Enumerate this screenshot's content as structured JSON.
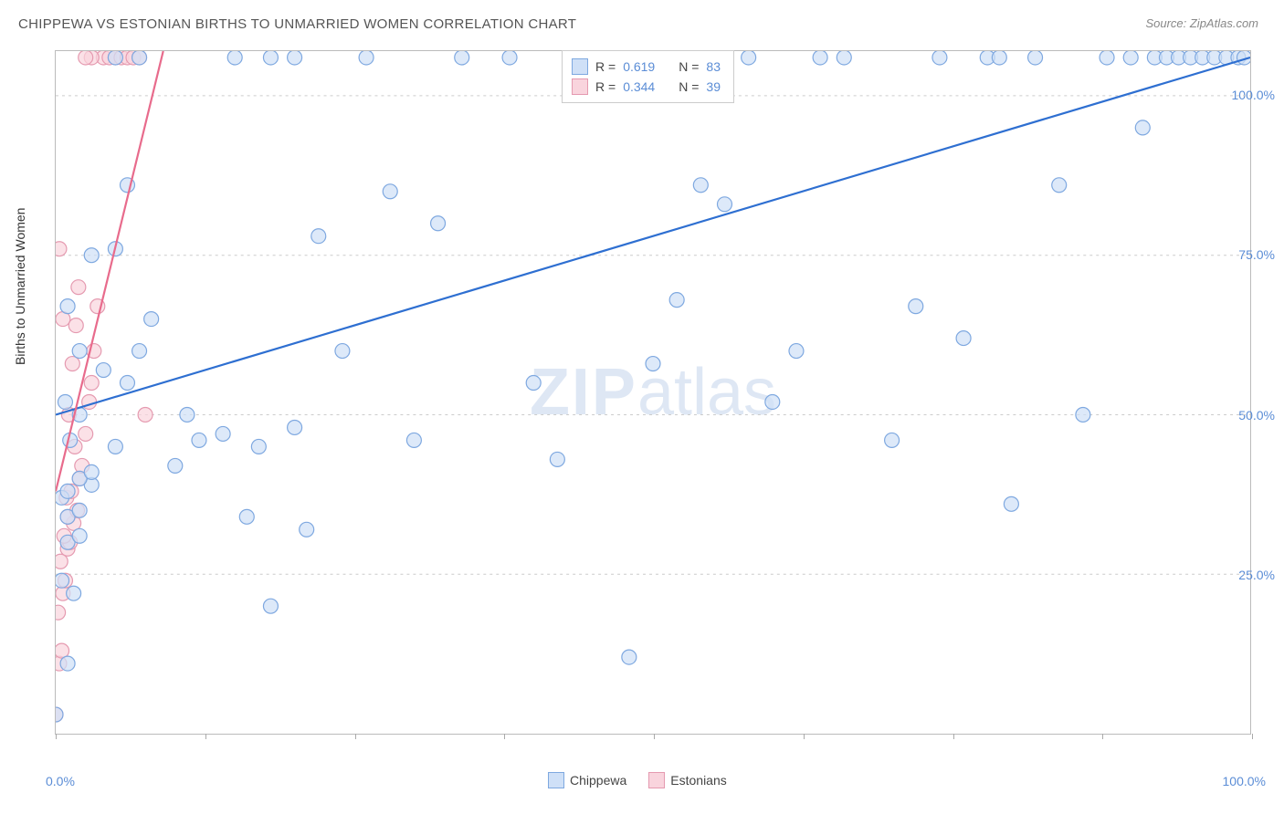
{
  "title": "CHIPPEWA VS ESTONIAN BIRTHS TO UNMARRIED WOMEN CORRELATION CHART",
  "source_label": "Source: ZipAtlas.com",
  "watermark": {
    "bold": "ZIP",
    "light": "atlas"
  },
  "ylabel": "Births to Unmarried Women",
  "chart": {
    "type": "scatter",
    "background_color": "#ffffff",
    "grid_color": "#cccccc",
    "border_color": "#bbbbbb",
    "xlim": [
      0,
      100
    ],
    "ylim": [
      0,
      107
    ],
    "y_ticks": [
      {
        "value": 25,
        "label": "25.0%"
      },
      {
        "value": 50,
        "label": "50.0%"
      },
      {
        "value": 75,
        "label": "75.0%"
      },
      {
        "value": 100,
        "label": "100.0%"
      }
    ],
    "x_ticks": [
      0,
      12.5,
      25,
      37.5,
      50,
      62.5,
      75,
      87.5,
      100
    ],
    "x_min_label": "0.0%",
    "x_max_label": "100.0%",
    "marker_radius": 8,
    "marker_stroke_width": 1.2,
    "line_width": 2.2,
    "series": [
      {
        "name": "Chippewa",
        "fill": "#cfe0f7",
        "stroke": "#7ea8e0",
        "line_color": "#2e6fd1",
        "R": "0.619",
        "N": "83",
        "trend": {
          "x1": 0,
          "y1": 50,
          "x2": 100,
          "y2": 106
        },
        "points": [
          [
            0,
            3
          ],
          [
            1,
            11
          ],
          [
            1.5,
            22
          ],
          [
            0.5,
            24
          ],
          [
            1,
            30
          ],
          [
            2,
            31
          ],
          [
            1,
            34
          ],
          [
            2,
            35
          ],
          [
            0.5,
            37
          ],
          [
            1,
            38
          ],
          [
            3,
            39
          ],
          [
            2,
            40
          ],
          [
            3,
            41
          ],
          [
            5,
            45
          ],
          [
            2,
            50
          ],
          [
            6,
            55
          ],
          [
            4,
            57
          ],
          [
            7,
            60
          ],
          [
            8,
            65
          ],
          [
            5,
            76
          ],
          [
            6,
            86
          ],
          [
            10,
            42
          ],
          [
            12,
            46
          ],
          [
            11,
            50
          ],
          [
            14,
            47
          ],
          [
            16,
            34
          ],
          [
            17,
            45
          ],
          [
            18,
            20
          ],
          [
            20,
            48
          ],
          [
            21,
            32
          ],
          [
            22,
            78
          ],
          [
            24,
            60
          ],
          [
            26,
            106
          ],
          [
            28,
            85
          ],
          [
            30,
            46
          ],
          [
            32,
            80
          ],
          [
            34,
            106
          ],
          [
            15,
            106
          ],
          [
            18,
            106
          ],
          [
            20,
            106
          ],
          [
            38,
            106
          ],
          [
            40,
            55
          ],
          [
            42,
            43
          ],
          [
            44,
            106
          ],
          [
            48,
            12
          ],
          [
            50,
            58
          ],
          [
            52,
            68
          ],
          [
            54,
            86
          ],
          [
            56,
            83
          ],
          [
            58,
            106
          ],
          [
            60,
            52
          ],
          [
            62,
            60
          ],
          [
            64,
            106
          ],
          [
            66,
            106
          ],
          [
            70,
            46
          ],
          [
            72,
            67
          ],
          [
            74,
            106
          ],
          [
            76,
            62
          ],
          [
            78,
            106
          ],
          [
            79,
            106
          ],
          [
            80,
            36
          ],
          [
            82,
            106
          ],
          [
            84,
            86
          ],
          [
            86,
            50
          ],
          [
            88,
            106
          ],
          [
            90,
            106
          ],
          [
            91,
            95
          ],
          [
            92,
            106
          ],
          [
            93,
            106
          ],
          [
            94,
            106
          ],
          [
            95,
            106
          ],
          [
            96,
            106
          ],
          [
            97,
            106
          ],
          [
            98,
            106
          ],
          [
            99,
            106
          ],
          [
            99.5,
            106
          ],
          [
            5,
            106
          ],
          [
            7,
            106
          ],
          [
            3,
            75
          ],
          [
            1,
            67
          ],
          [
            2,
            60
          ],
          [
            0.8,
            52
          ],
          [
            1.2,
            46
          ]
        ]
      },
      {
        "name": "Estonians",
        "fill": "#f9d4dd",
        "stroke": "#e59ab0",
        "line_color": "#e86b8c",
        "R": "0.344",
        "N": "39",
        "trend": {
          "x1": 0,
          "y1": 38,
          "x2": 9,
          "y2": 107
        },
        "points": [
          [
            0,
            3
          ],
          [
            0.3,
            11
          ],
          [
            0.5,
            13
          ],
          [
            0.2,
            19
          ],
          [
            0.6,
            22
          ],
          [
            0.8,
            24
          ],
          [
            0.4,
            27
          ],
          [
            1,
            29
          ],
          [
            1.2,
            30
          ],
          [
            0.7,
            31
          ],
          [
            1.5,
            33
          ],
          [
            1,
            34
          ],
          [
            1.8,
            35
          ],
          [
            0.9,
            37
          ],
          [
            1.3,
            38
          ],
          [
            2,
            40
          ],
          [
            2.2,
            42
          ],
          [
            1.6,
            45
          ],
          [
            2.5,
            47
          ],
          [
            1.1,
            50
          ],
          [
            2.8,
            52
          ],
          [
            3,
            55
          ],
          [
            1.4,
            58
          ],
          [
            3.2,
            60
          ],
          [
            0.6,
            65
          ],
          [
            3.5,
            67
          ],
          [
            1.9,
            70
          ],
          [
            0.3,
            76
          ],
          [
            4,
            106
          ],
          [
            4.5,
            106
          ],
          [
            5,
            106
          ],
          [
            5.5,
            106
          ],
          [
            6,
            106
          ],
          [
            6.5,
            106
          ],
          [
            7,
            106
          ],
          [
            3,
            106
          ],
          [
            2.5,
            106
          ],
          [
            7.5,
            50
          ],
          [
            1.7,
            64
          ]
        ]
      }
    ]
  },
  "legend_box": {
    "rows": [
      {
        "swatch_fill": "#cfe0f7",
        "swatch_stroke": "#7ea8e0",
        "r_label": "R =",
        "r_value": "0.619",
        "n_label": "N =",
        "n_value": "83"
      },
      {
        "swatch_fill": "#f9d4dd",
        "swatch_stroke": "#e59ab0",
        "r_label": "R =",
        "r_value": "0.344",
        "n_label": "N =",
        "n_value": "39"
      }
    ]
  },
  "bottom_legend": [
    {
      "swatch_fill": "#cfe0f7",
      "swatch_stroke": "#7ea8e0",
      "label": "Chippewa"
    },
    {
      "swatch_fill": "#f9d4dd",
      "swatch_stroke": "#e59ab0",
      "label": "Estonians"
    }
  ]
}
